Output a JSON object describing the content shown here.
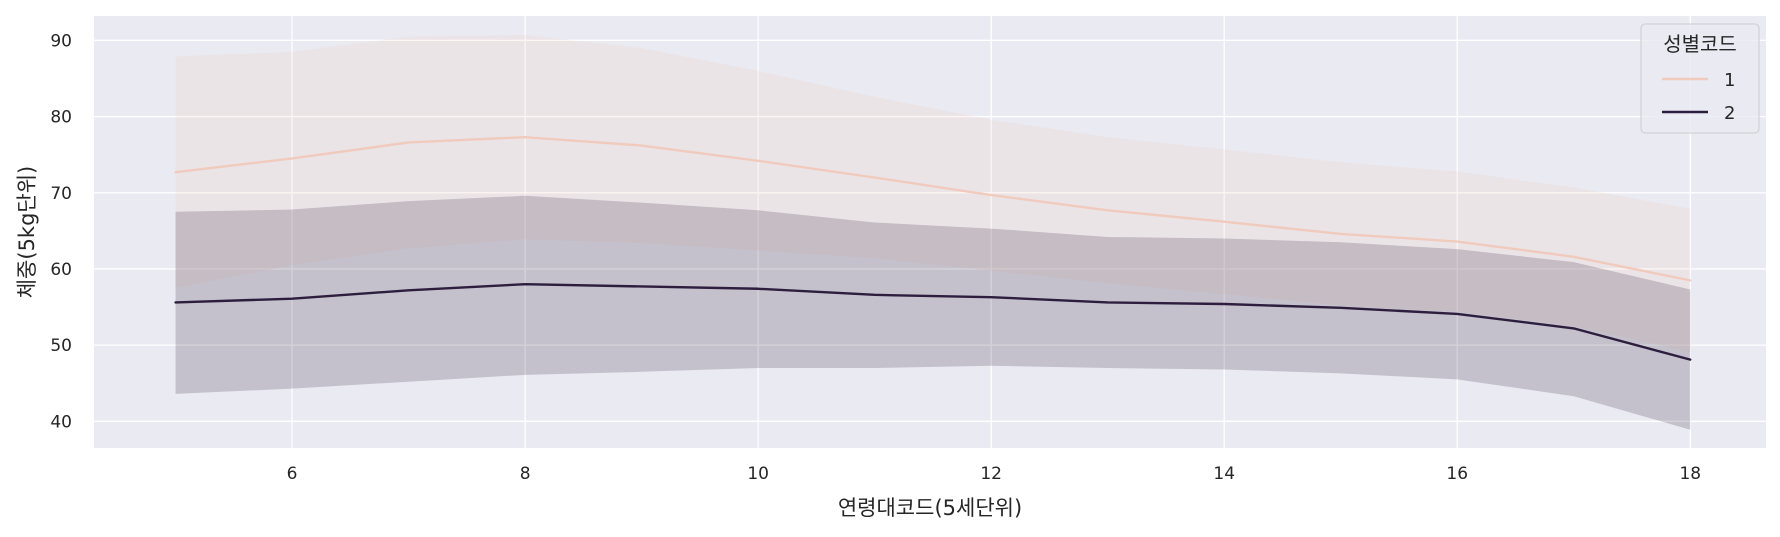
{
  "chart_data": {
    "type": "line",
    "xlabel": "연령대코드(5세단위)",
    "ylabel": "체중(5kg단위)",
    "xlim": [
      4.3,
      18.65
    ],
    "ylim": [
      36.5,
      93.2
    ],
    "xticks": [
      6,
      8,
      10,
      12,
      14,
      16,
      18
    ],
    "yticks": [
      40,
      50,
      60,
      70,
      80,
      90
    ],
    "grid": true,
    "legend": {
      "title": "성별코드",
      "placement": "top-right"
    },
    "x": [
      5,
      6,
      7,
      8,
      9,
      10,
      11,
      12,
      13,
      14,
      15,
      16,
      17,
      18
    ],
    "series": [
      {
        "name": "1",
        "color": "#f0cbbd",
        "values": [
          72.7,
          74.5,
          76.6,
          77.3,
          76.2,
          74.2,
          72.0,
          69.7,
          67.7,
          66.2,
          64.6,
          63.6,
          61.6,
          58.5
        ],
        "band_upper": [
          87.9,
          88.5,
          90.5,
          90.7,
          89.0,
          86.0,
          82.6,
          79.6,
          77.3,
          75.7,
          74.0,
          72.8,
          70.7,
          67.9
        ],
        "band_lower": [
          57.5,
          60.5,
          62.7,
          63.9,
          63.4,
          62.4,
          61.4,
          59.8,
          58.1,
          56.7,
          55.2,
          54.4,
          52.5,
          49.1
        ]
      },
      {
        "name": "2",
        "color": "#2d1e3e",
        "values": [
          55.6,
          56.1,
          57.2,
          58.0,
          57.7,
          57.4,
          56.6,
          56.3,
          55.6,
          55.4,
          54.9,
          54.1,
          52.2,
          48.1
        ],
        "band_upper": [
          67.5,
          67.8,
          68.9,
          69.6,
          68.7,
          67.7,
          66.1,
          65.3,
          64.2,
          64.0,
          63.5,
          62.6,
          60.9,
          57.3
        ],
        "band_lower": [
          43.6,
          44.3,
          45.2,
          46.1,
          46.5,
          47.0,
          47.0,
          47.3,
          47.0,
          46.8,
          46.3,
          45.5,
          43.3,
          38.9
        ]
      }
    ]
  }
}
